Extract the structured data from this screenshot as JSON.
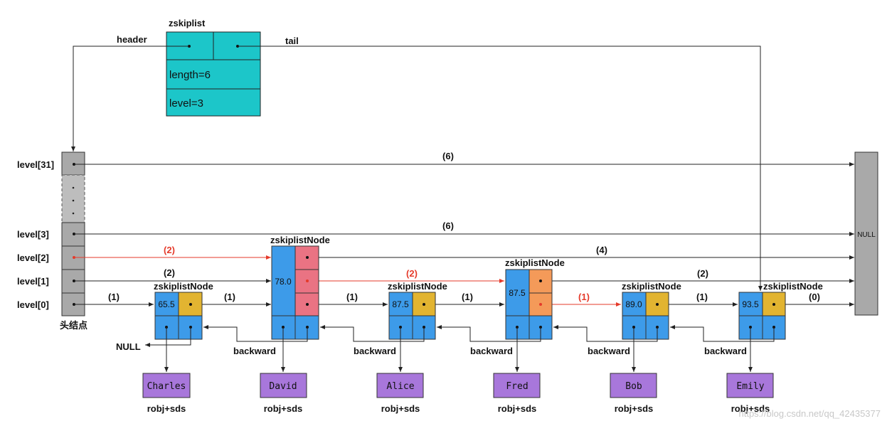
{
  "zskiplist": {
    "title": "zskiplist",
    "header_label": "header",
    "tail_label": "tail",
    "length_label": "length=6",
    "level_label": "level=3"
  },
  "header_node": {
    "levels": [
      "level[31]",
      "level[3]",
      "level[2]",
      "level[1]",
      "level[0]"
    ],
    "caption": "头结点"
  },
  "null_box": "NULL",
  "null_backward": "NULL",
  "node_title": "zskiplistNode",
  "backward_label": "backward",
  "robj_label": "robj+sds",
  "spans": {
    "l31": "(6)",
    "l3": "(6)",
    "l2_a": "(2)",
    "l2_b": "(4)",
    "l1_a": "(2)",
    "l1_b": "(2)",
    "l1_c": "(2)",
    "l0_a": "(1)",
    "l0_b": "(1)",
    "l0_c": "(1)",
    "l0_d": "(1)",
    "l0_e": "(1)",
    "l0_f": "(1)",
    "l0_g": "(0)"
  },
  "nodes": [
    {
      "score": "65.5",
      "member": "Charles"
    },
    {
      "score": "78.0",
      "member": "David"
    },
    {
      "score": "87.5",
      "member": "Alice"
    },
    {
      "score": "87.5",
      "member": "Fred"
    },
    {
      "score": "89.0",
      "member": "Bob"
    },
    {
      "score": "93.5",
      "member": "Emily"
    }
  ],
  "watermark": "https://blog.csdn.net/qq_42435377",
  "colors": {
    "zskiplist_fill": "#1cc6c9",
    "node_blue": "#3d9be9",
    "level_yellow": "#e2b431",
    "level_pink": "#ea7383",
    "level_orange": "#f49a59",
    "header_gray": "#a9a9a9",
    "member_purple": "#a877db",
    "search_path": "#e53a2a"
  }
}
